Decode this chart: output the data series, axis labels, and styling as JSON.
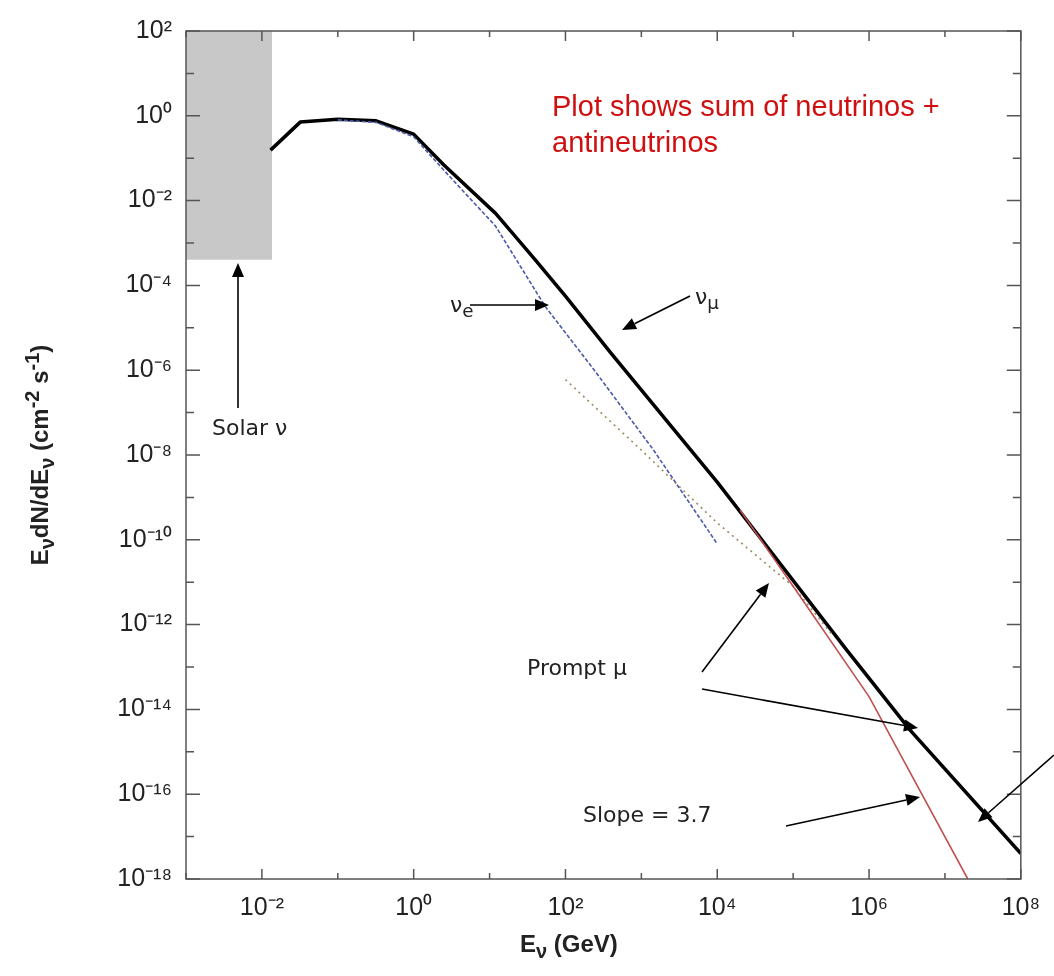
{
  "chart_data": {
    "type": "line",
    "xlabel": "E$_{ν}$   (GeV)",
    "ylabel": "E$_{ν}$dN/dE$_{ν}$   (cm$^{-2}$  s$^{-1}$)",
    "log": "xy",
    "xlim": [
      0.001,
      100000000
    ],
    "ylim": [
      1e-18,
      100
    ],
    "xticks": [
      {
        "value": 0.001,
        "label": null
      },
      {
        "value": 0.01,
        "label": "10⁻²"
      },
      {
        "value": 0.1,
        "label": null
      },
      {
        "value": 1,
        "label": "10⁰"
      },
      {
        "value": 10,
        "label": null
      },
      {
        "value": 100,
        "label": "10²"
      },
      {
        "value": 1000,
        "label": null
      },
      {
        "value": 10000,
        "label": "10⁴"
      },
      {
        "value": 100000,
        "label": null
      },
      {
        "value": 1000000,
        "label": "10⁶"
      },
      {
        "value": 10000000,
        "label": null
      },
      {
        "value": 100000000,
        "label": "10⁸"
      }
    ],
    "yticks": [
      {
        "value": 1e-18,
        "label": "10⁻¹⁸"
      },
      {
        "value": 1e-17,
        "label": null
      },
      {
        "value": 1e-16,
        "label": "10⁻¹⁶"
      },
      {
        "value": 1e-15,
        "label": null
      },
      {
        "value": 1e-14,
        "label": "10⁻¹⁴"
      },
      {
        "value": 1e-13,
        "label": null
      },
      {
        "value": 1e-12,
        "label": "10⁻¹²"
      },
      {
        "value": 1e-11,
        "label": null
      },
      {
        "value": 1e-10,
        "label": "10⁻¹⁰"
      },
      {
        "value": 1e-09,
        "label": null
      },
      {
        "value": 1e-08,
        "label": "10⁻⁸"
      },
      {
        "value": 1e-07,
        "label": null
      },
      {
        "value": 1e-06,
        "label": "10⁻⁶"
      },
      {
        "value": 1e-05,
        "label": null
      },
      {
        "value": 0.0001,
        "label": "10⁻⁴"
      },
      {
        "value": 0.001,
        "label": null
      },
      {
        "value": 0.01,
        "label": "10⁻²"
      },
      {
        "value": 0.1,
        "label": null
      },
      {
        "value": 1,
        "label": "10⁰"
      },
      {
        "value": 10,
        "label": null
      },
      {
        "value": 100,
        "label": "10²"
      }
    ],
    "annotations": [
      "Plot shows sum of neutrinos + antineutrinos",
      "Solar ν",
      "Prompt μ",
      "Slope = 3.7"
    ],
    "series": [
      {
        "type": "bar",
        "color": "#c8c8c8",
        "x": [
          0.0036
        ],
        "values": [
          99.9996
        ],
        "base": [
          0.0004
        ]
      },
      {
        "name": "ν$_{μ}$",
        "color": "#000000",
        "line_style": "solid",
        "x": [
          0.013,
          0.032,
          0.1,
          0.32,
          1,
          2.5,
          12,
          40,
          100,
          400,
          10000,
          500000,
          3500000,
          100000000
        ],
        "values": [
          0.155,
          0.71,
          0.83,
          0.76,
          0.37,
          0.069,
          0.005,
          0.0004,
          5.6e-05,
          2.5e-06,
          2.3e-09,
          2.6e-13,
          3.2e-15,
          4e-18
        ]
      },
      {
        "name": "ν$_{e}$",
        "color": "#4a5aa8",
        "line_style": "dashed",
        "x": [
          0.1,
          0.32,
          1,
          2.5,
          12,
          54,
          240,
          1450,
          10000
        ],
        "values": [
          0.8,
          0.7,
          0.32,
          0.052,
          0.0025,
          3.2e-05,
          1e-06,
          1.3e-08,
          8e-11
        ]
      },
      {
        "color": "#a08a60",
        "line_style": "dotted",
        "x": [
          100,
          1000,
          10000,
          100000,
          320000
        ],
        "values": [
          6e-07,
          1.3e-08,
          2.5e-10,
          8e-12,
          6e-13
        ]
      },
      {
        "color": "#c05050",
        "line_style": "solid",
        "x": [
          20000,
          100000,
          1000000,
          20000000
        ],
        "values": [
          5e-10,
          8e-12,
          2e-14,
          1e-18
        ]
      }
    ]
  }
}
